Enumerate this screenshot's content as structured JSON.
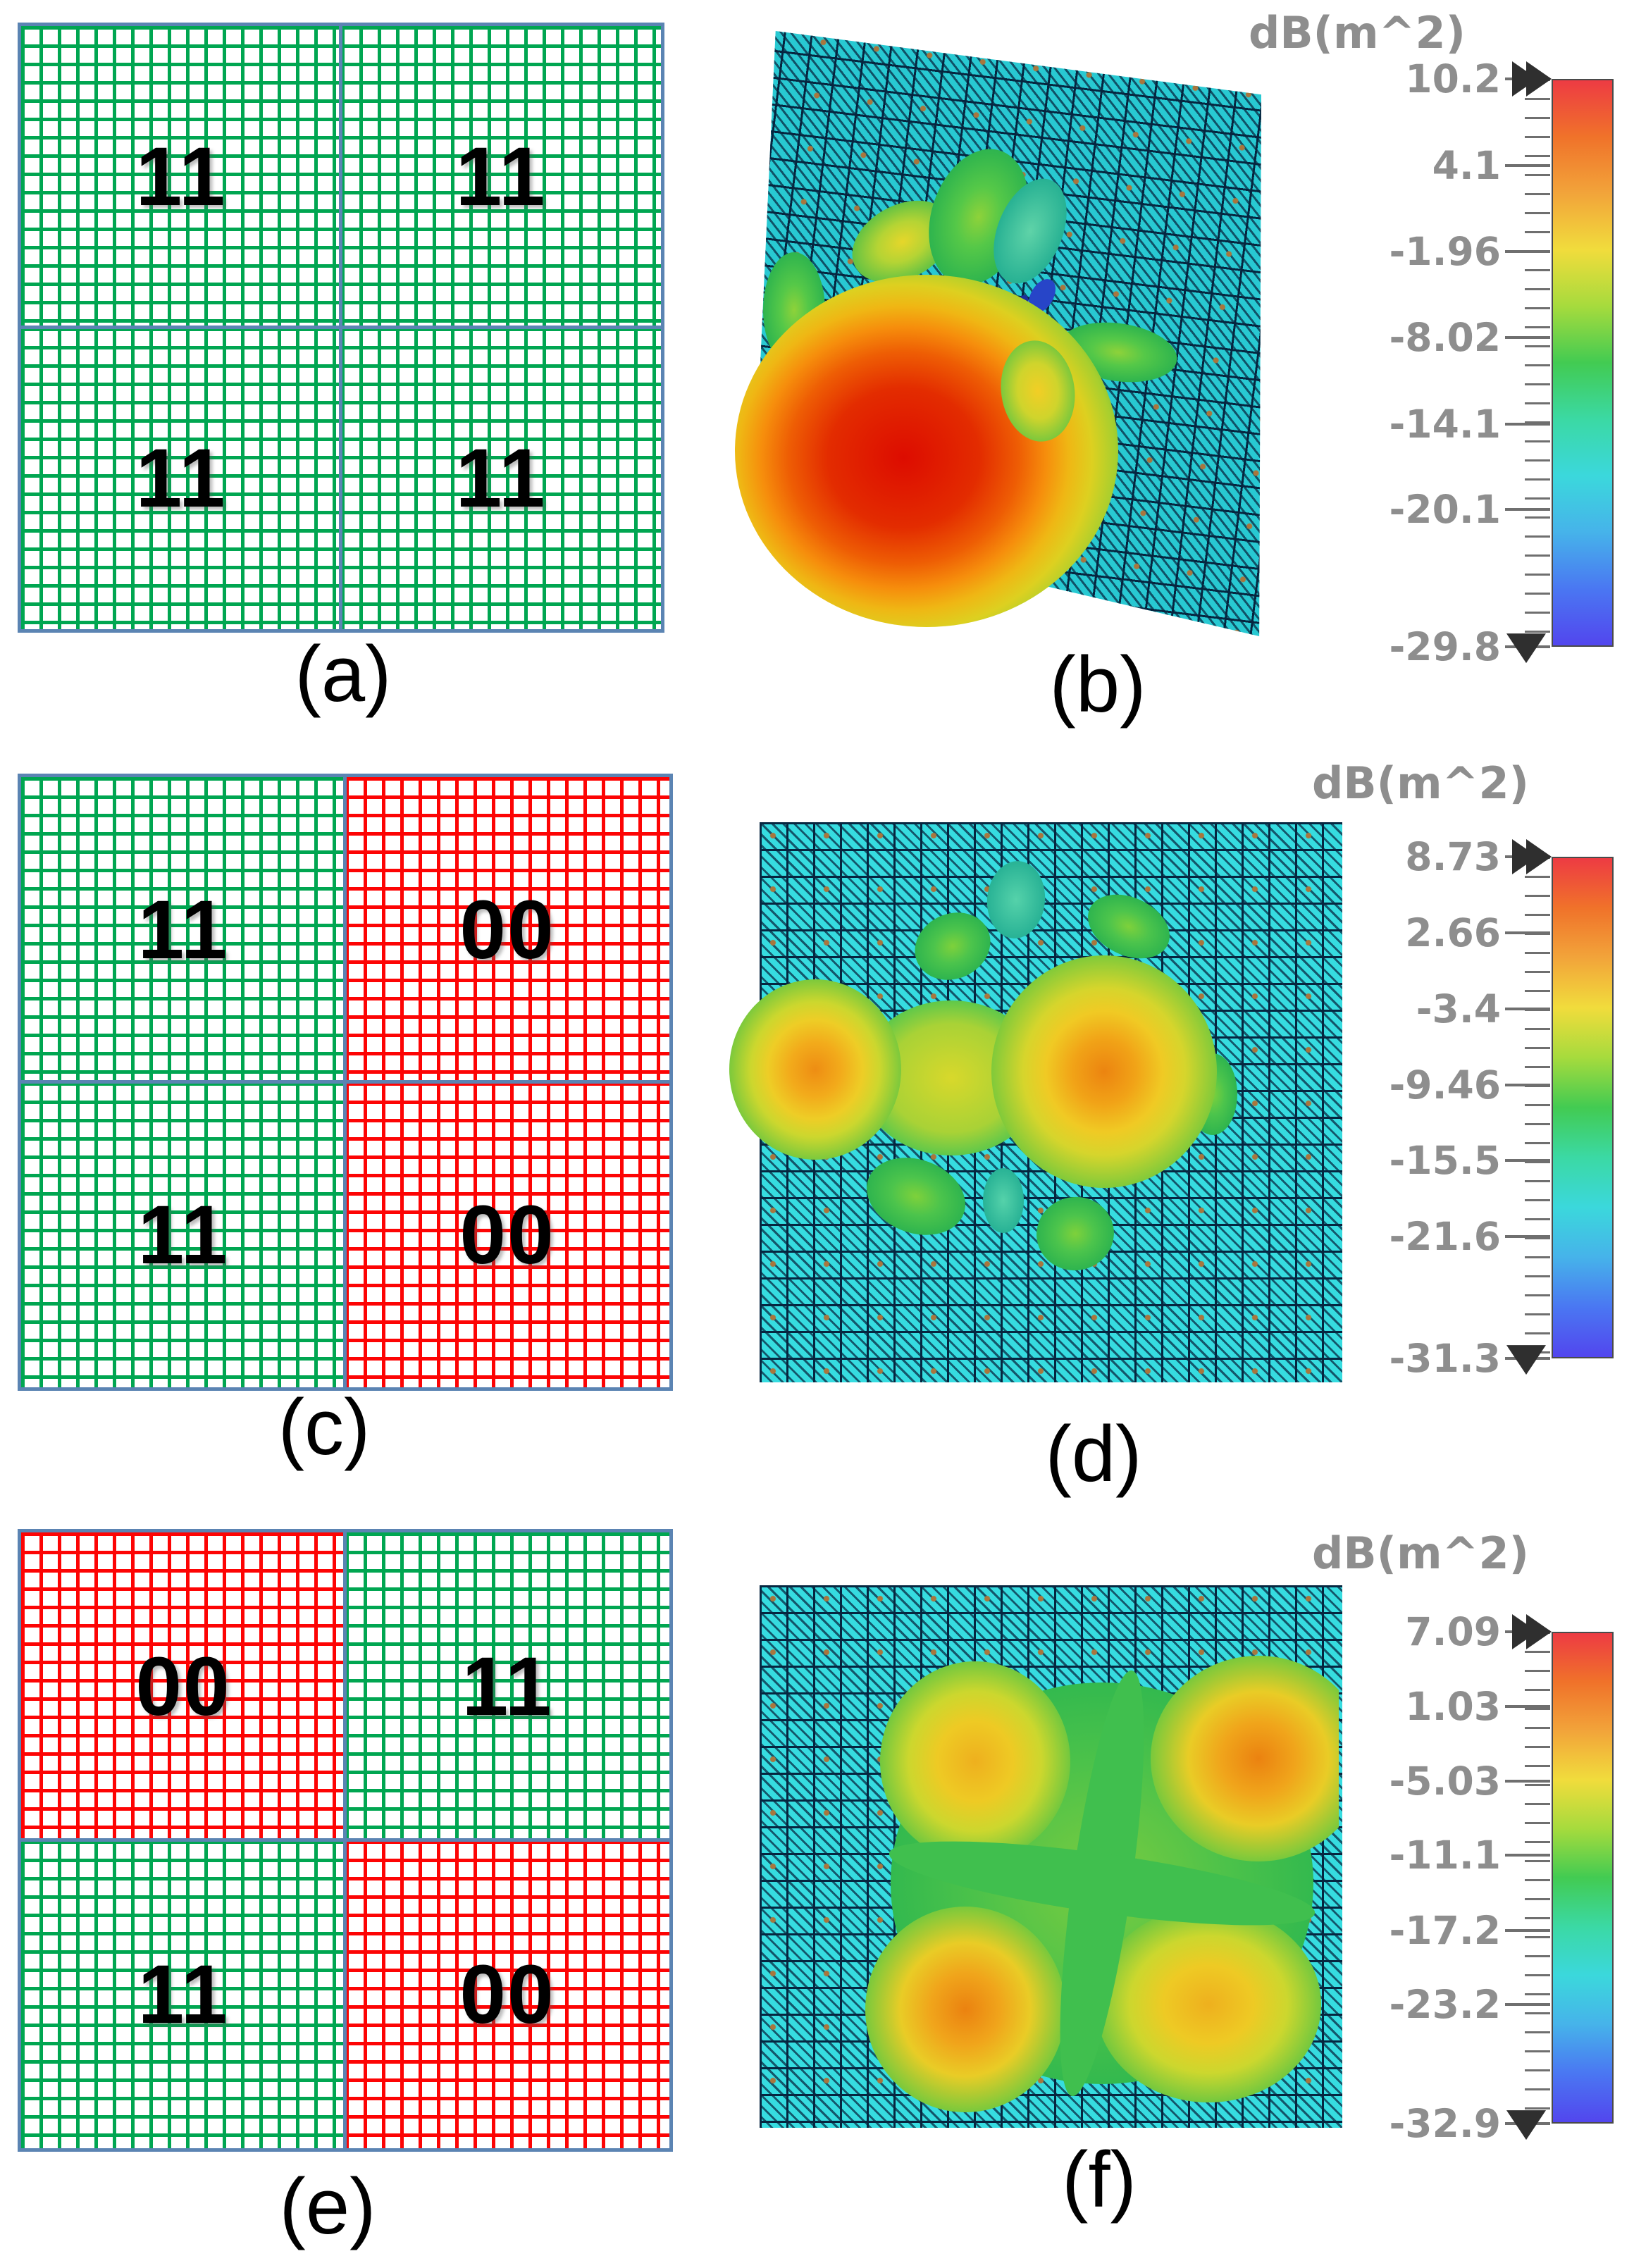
{
  "panels": {
    "a": {
      "caption": "(a)",
      "quadrants": [
        {
          "code": "11",
          "state": "green"
        },
        {
          "code": "11",
          "state": "green"
        },
        {
          "code": "11",
          "state": "green"
        },
        {
          "code": "11",
          "state": "green"
        }
      ]
    },
    "b": {
      "caption": "(b)"
    },
    "c": {
      "caption": "(c)",
      "quadrants": [
        {
          "code": "11",
          "state": "green"
        },
        {
          "code": "00",
          "state": "red"
        },
        {
          "code": "11",
          "state": "green"
        },
        {
          "code": "00",
          "state": "red"
        }
      ]
    },
    "d": {
      "caption": "(d)"
    },
    "e": {
      "caption": "(e)",
      "quadrants": [
        {
          "code": "00",
          "state": "red"
        },
        {
          "code": "11",
          "state": "green"
        },
        {
          "code": "11",
          "state": "green"
        },
        {
          "code": "00",
          "state": "red"
        }
      ]
    },
    "f": {
      "caption": "(f)"
    }
  },
  "colorbars": {
    "b": {
      "title": "dB(m^2)",
      "ticks": [
        "10.2",
        "4.1",
        "-1.96",
        "-8.02",
        "-14.1",
        "-20.1",
        "-29.8"
      ]
    },
    "d": {
      "title": "dB(m^2)",
      "ticks": [
        "8.73",
        "2.66",
        "-3.4",
        "-9.46",
        "-15.5",
        "-21.6",
        "-31.3"
      ]
    },
    "f": {
      "title": "dB(m^2)",
      "ticks": [
        "7.09",
        "1.03",
        "-5.03",
        "-11.1",
        "-17.2",
        "-23.2",
        "-32.9"
      ]
    }
  },
  "colors": {
    "grid_green": "#00a651",
    "grid_red": "#fd0404",
    "panel_border_blue": "#5b84b3",
    "mesh_cyan": "#36dce0",
    "mesh_cyan_b": "#28c9d2",
    "mesh_line": "#062640",
    "mesh_dot": "#a9763d",
    "colorbar_text": "#8e8e8e",
    "marker_dark": "#2f2f2f",
    "colorbar_gradient": [
      "#ed3b43",
      "#f0722a",
      "#f2a43a",
      "#f1dc3c",
      "#a6db3d",
      "#42cb52",
      "#3bd9a4",
      "#3bd8dc",
      "#46b3ea",
      "#4a77f2",
      "#5246ee"
    ]
  }
}
